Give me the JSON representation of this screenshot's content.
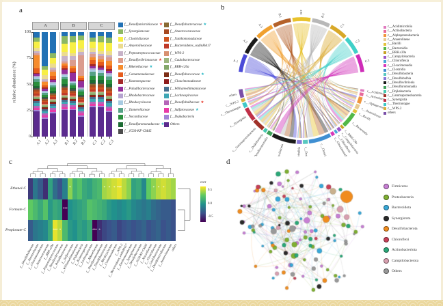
{
  "figure": {
    "panel_labels": {
      "a": "a",
      "b": "b",
      "c": "c",
      "d": "d"
    },
    "star_colors": {
      "red": "#e8392b",
      "cyan": "#29b8c5"
    }
  },
  "chart_data": [
    {
      "type": "bar",
      "panel": "a",
      "stacked": true,
      "ylabel": "relative abundance (%)",
      "ylim": [
        0,
        100
      ],
      "yticks": [
        "100",
        "75",
        "50",
        "25",
        "0"
      ],
      "facets": [
        "A",
        "B",
        "C"
      ],
      "categories": [
        "A.1",
        "A.2",
        "A.3",
        "B.1",
        "B.2",
        "B.3",
        "C.1",
        "C.2",
        "C.3"
      ],
      "series": [
        {
          "name": "f__Desulfomicrobiaceae",
          "color": "#2171b5",
          "star": "red",
          "values": [
            5,
            33,
            20,
            4,
            4,
            3,
            5,
            4,
            5
          ]
        },
        {
          "name": "f__Synergistaceae",
          "color": "#8cb863",
          "star": null,
          "values": [
            4,
            3,
            5,
            7,
            6,
            5,
            4,
            6,
            5
          ]
        },
        {
          "name": "f__Clostridiaceae",
          "color": "#f7ef45",
          "star": null,
          "values": [
            6,
            5,
            5,
            8,
            10,
            8,
            6,
            8,
            7
          ]
        },
        {
          "name": "f__Anaerolineaceae",
          "color": "#ecdc8f",
          "star": null,
          "values": [
            3,
            4,
            4,
            4,
            3,
            3,
            4,
            3,
            4
          ]
        },
        {
          "name": "f__Peptostreptococcaceae",
          "color": "#c7b2c8",
          "star": null,
          "values": [
            2,
            2,
            2,
            5,
            4,
            3,
            2,
            2,
            2
          ]
        },
        {
          "name": "f__Desulfovibrionaceae",
          "color": "#db9c8e",
          "star": "red",
          "values": [
            2,
            1,
            2,
            2,
            6,
            20,
            3,
            3,
            3
          ]
        },
        {
          "name": "f__Rikenellaceae",
          "color": "#f68b2c",
          "star": "cyan",
          "values": [
            13,
            3,
            4,
            2,
            2,
            2,
            3,
            3,
            4
          ]
        },
        {
          "name": "f__Comamonadaceae",
          "color": "#e65c1c",
          "star": null,
          "values": [
            4,
            2,
            3,
            3,
            3,
            2,
            4,
            3,
            3
          ]
        },
        {
          "name": "f__Kosmotogaceae",
          "color": "#a42828",
          "star": null,
          "values": [
            1,
            1,
            1,
            1,
            1,
            1,
            2,
            2,
            2
          ]
        },
        {
          "name": "f__Paludibacteraceae",
          "color": "#93309c",
          "star": null,
          "values": [
            2,
            2,
            2,
            4,
            8,
            6,
            2,
            2,
            2
          ]
        },
        {
          "name": "f__Rhodobacteraceae",
          "color": "#b6a4d0",
          "star": null,
          "values": [
            1,
            1,
            1,
            1,
            1,
            1,
            1,
            1,
            1
          ]
        },
        {
          "name": "f__Rhodocyclaceae",
          "color": "#a8cbe2",
          "star": null,
          "values": [
            2,
            1,
            2,
            2,
            1,
            1,
            2,
            2,
            2
          ]
        },
        {
          "name": "f__Tannerellaceae",
          "color": "#55a286",
          "star": null,
          "values": [
            3,
            2,
            2,
            2,
            2,
            2,
            4,
            3,
            3
          ]
        },
        {
          "name": "f__Nocardiaceae",
          "color": "#2a8f3c",
          "star": null,
          "values": [
            4,
            2,
            3,
            5,
            3,
            3,
            4,
            4,
            4
          ]
        },
        {
          "name": "f__Desulfuromonadaceae",
          "color": "#1c6b33",
          "star": "cyan",
          "values": [
            2,
            1,
            2,
            2,
            1,
            1,
            3,
            3,
            2
          ]
        },
        {
          "name": "f__JG30-KF-CM45",
          "color": "#4d4d4d",
          "star": null,
          "values": [
            1,
            1,
            1,
            1,
            1,
            1,
            1,
            1,
            1
          ]
        },
        {
          "name": "f__Desulfobacteraceae",
          "color": "#8a6a33",
          "star": "cyan",
          "values": [
            1,
            1,
            1,
            1,
            1,
            1,
            1,
            1,
            1
          ]
        },
        {
          "name": "f__Anaerovoracaceae",
          "color": "#a84a22",
          "star": null,
          "values": [
            1,
            1,
            1,
            2,
            1,
            1,
            2,
            2,
            2
          ]
        },
        {
          "name": "f__Xanthomonadaceae",
          "color": "#cf5522",
          "star": null,
          "values": [
            2,
            1,
            1,
            2,
            1,
            1,
            2,
            2,
            2
          ]
        },
        {
          "name": "f__Bacteroidetes_vadinHA17",
          "color": "#c03a28",
          "star": null,
          "values": [
            2,
            2,
            2,
            2,
            2,
            2,
            2,
            2,
            2
          ]
        },
        {
          "name": "f__WPS-2",
          "color": "#d89070",
          "star": null,
          "values": [
            1,
            1,
            1,
            1,
            1,
            1,
            1,
            1,
            1
          ]
        },
        {
          "name": "f__Caulobacteraceae",
          "color": "#9cb67e",
          "star": null,
          "values": [
            1,
            1,
            1,
            1,
            1,
            1,
            1,
            1,
            1
          ]
        },
        {
          "name": "f__BRH-c20a",
          "color": "#84a86a",
          "star": null,
          "values": [
            1,
            1,
            1,
            1,
            1,
            1,
            1,
            1,
            1
          ]
        },
        {
          "name": "f__Desulfobaccaceae",
          "color": "#7c2d16",
          "star": "cyan",
          "values": [
            1,
            1,
            1,
            1,
            1,
            1,
            1,
            1,
            1
          ]
        },
        {
          "name": "f__Cloacimonadaceae",
          "color": "#8f1d1d",
          "star": null,
          "values": [
            1,
            1,
            1,
            1,
            1,
            1,
            1,
            1,
            1
          ]
        },
        {
          "name": "f__Williamwhitmaniaceae",
          "color": "#47708f",
          "star": null,
          "values": [
            2,
            2,
            2,
            2,
            2,
            2,
            2,
            2,
            2
          ]
        },
        {
          "name": "f__Lachnospiraceae",
          "color": "#3fa7b5",
          "star": null,
          "values": [
            3,
            2,
            2,
            2,
            2,
            2,
            3,
            3,
            3
          ]
        },
        {
          "name": "f__Desulfobulbaceae",
          "color": "#b565b8",
          "star": "red",
          "values": [
            2,
            2,
            2,
            3,
            2,
            2,
            2,
            2,
            2
          ]
        },
        {
          "name": "f__Sulfurovaceae",
          "color": "#e93ba8",
          "star": "cyan",
          "values": [
            2,
            2,
            2,
            2,
            2,
            2,
            2,
            2,
            2
          ]
        },
        {
          "name": "f__Dojkabacteria",
          "color": "#a286d6",
          "star": null,
          "values": [
            1,
            1,
            1,
            1,
            1,
            1,
            1,
            1,
            1
          ]
        },
        {
          "name": "Others",
          "color": "#5b2b8e",
          "star": null,
          "values": [
            24,
            17,
            22,
            25,
            25,
            19,
            28,
            28,
            22
          ]
        }
      ]
    },
    {
      "type": "chord",
      "panel": "b",
      "samples": [
        {
          "name": "A.1",
          "color": "#4a4ad8"
        },
        {
          "name": "A.2",
          "color": "#1a1a1a"
        },
        {
          "name": "A.3",
          "color": "#f0a030"
        },
        {
          "name": "B.1",
          "color": "#b5622a"
        },
        {
          "name": "B.2",
          "color": "#e8c22c"
        },
        {
          "name": "B.3",
          "color": "#b8b8b8"
        },
        {
          "name": "C.1",
          "color": "#d8a828"
        },
        {
          "name": "C.2",
          "color": "#40d0c8"
        },
        {
          "name": "C.3",
          "color": "#cf2cb8"
        }
      ],
      "classes": [
        {
          "name": "c__Acidimicrobiia",
          "color": "#e07bbf",
          "value": 1.5
        },
        {
          "name": "c__Actinobacteria",
          "color": "#e86a9a",
          "value": 2
        },
        {
          "name": "c__Alphaproteobacteria",
          "color": "#f0953c",
          "value": 4
        },
        {
          "name": "c__Anaerolineae",
          "color": "#e8c98f",
          "value": 3
        },
        {
          "name": "c__Bacilli",
          "color": "#e3c23c",
          "value": 2
        },
        {
          "name": "c__Bacteroidia",
          "color": "#53b848",
          "value": 9
        },
        {
          "name": "c__BRH.c20a",
          "color": "#c8a227",
          "value": 1.5
        },
        {
          "name": "c__Campylobacteria",
          "color": "#9a55c8",
          "value": 2
        },
        {
          "name": "c__Chloroflexia",
          "color": "#4aa8d8",
          "value": 1.5
        },
        {
          "name": "c__Cloacimonadia",
          "color": "#d838b8",
          "value": 2
        },
        {
          "name": "c__Clostridia",
          "color": "#3f8fd2",
          "value": 13
        },
        {
          "name": "c__Desulfobacteria",
          "color": "#58c8c0",
          "value": 3
        },
        {
          "name": "c__Desulfobulbia",
          "color": "#8878d8",
          "value": 3
        },
        {
          "name": "c__Desulfovibrionia",
          "color": "#1a1a1a",
          "value": 14
        },
        {
          "name": "c__Desulfuromonadia",
          "color": "#3fa05a",
          "value": 3
        },
        {
          "name": "c__Dojkabacteria",
          "color": "#45c8b0",
          "value": 2
        },
        {
          "name": "c__Gammaproteobacteria",
          "color": "#a03028",
          "value": 7
        },
        {
          "name": "c__Synergistia",
          "color": "#c03048",
          "value": 8
        },
        {
          "name": "c__Thermotogae",
          "color": "#3fc8c8",
          "value": 3
        },
        {
          "name": "c__WPS.2",
          "color": "#d8b23c",
          "value": 2
        },
        {
          "name": "others",
          "color": "#7a4fa8",
          "value": 5
        }
      ]
    },
    {
      "type": "heatmap",
      "panel": "c",
      "rows": [
        "Ethanol-C",
        "Formate-C",
        "Propionate-C"
      ],
      "columns": [
        "f__Desulfobulbaceae",
        "f__Tannerellaceae",
        "f__Cloacimonadaceae",
        "f__Anaerovoracaceae",
        "f__BRH-c20a",
        "f__Peptostreptococcaceae",
        "f__Desulfovibrionaceae",
        "f__Paludibacteraceae",
        "f__Sulfurovaceae",
        "f__Williamwhitmaniaceae",
        "f__Dojkabacteria",
        "f__Kosmotogaceae",
        "f__Lachnospiraceae",
        "f__Rikenellaceae",
        "f__Desulfuromonadaceae",
        "f__Desulfobacteraceae",
        "f__Rhodocyclaceae",
        "f__Comamonadaceae",
        "f__WPS-2",
        "f__Bacteroidetes_vadinHA17",
        "f__Xanthomonadaceae",
        "f__Synergistaceae",
        "f__Desulfobaccaceae",
        "f__JG30-KF-CM45",
        "f__Nocardiaceae",
        "f__Clostridiaceae",
        "f__Caulobacteraceae",
        "f__Desulfomicrobiaceae",
        "f__Anaerolineaceae",
        "others"
      ],
      "values": [
        [
          -0.45,
          -0.15,
          -0.3,
          -0.5,
          0.1,
          -0.2,
          -0.35,
          -0.1,
          0.45,
          0.2,
          0.3,
          0.15,
          0.1,
          0.2,
          0.25,
          0.5,
          0.55,
          0.6,
          0.65,
          0.55,
          0.45,
          0.1,
          0.15,
          -0.05,
          0.35,
          0.45,
          0.55,
          0.6,
          0.55,
          0.5
        ],
        [
          0.35,
          0.25,
          0.15,
          0.3,
          0.05,
          0.15,
          0.1,
          -0.7,
          0.0,
          0.05,
          0.1,
          0.15,
          0.3,
          0.25,
          0.2,
          0.15,
          0.05,
          0.0,
          -0.05,
          0.0,
          0.05,
          -0.05,
          -0.1,
          -0.15,
          -0.1,
          -0.2,
          -0.25,
          -0.3,
          -0.3,
          -0.35
        ],
        [
          -0.3,
          -0.15,
          -0.1,
          -0.05,
          0.15,
          0.65,
          0.55,
          0.25,
          0.05,
          0.0,
          0.1,
          0.05,
          0.15,
          -0.7,
          -0.5,
          -0.4,
          -0.35,
          -0.3,
          -0.4,
          -0.35,
          -0.3,
          -0.35,
          -0.3,
          -0.25,
          -0.35,
          -0.3,
          -0.25,
          -0.35,
          -0.3,
          -0.35
        ]
      ],
      "stars": [
        {
          "row": 0,
          "col": 8,
          "text": "*"
        },
        {
          "row": 0,
          "col": 15,
          "text": "*"
        },
        {
          "row": 0,
          "col": 16,
          "text": "*"
        },
        {
          "row": 0,
          "col": 17,
          "text": "*"
        },
        {
          "row": 0,
          "col": 18,
          "text": "***"
        },
        {
          "row": 0,
          "col": 25,
          "text": "*"
        },
        {
          "row": 0,
          "col": 26,
          "text": "*"
        },
        {
          "row": 0,
          "col": 27,
          "text": "*"
        },
        {
          "row": 1,
          "col": 7,
          "text": "***"
        },
        {
          "row": 2,
          "col": 5,
          "text": "***"
        },
        {
          "row": 2,
          "col": 6,
          "text": "*"
        },
        {
          "row": 2,
          "col": 13,
          "text": "***"
        },
        {
          "row": 2,
          "col": 14,
          "text": "*"
        }
      ],
      "legend": {
        "title": "corr",
        "ticks": [
          "0.5",
          "0.0",
          "-0.5"
        ],
        "vmin": -0.7,
        "vmax": 0.7
      }
    },
    {
      "type": "network",
      "panel": "d",
      "legend_entries": [
        {
          "label": "Firmicutes",
          "color": "#c77fd4",
          "count": 26
        },
        {
          "label": "Proteobacteria",
          "color": "#7fb032",
          "count": 22
        },
        {
          "label": "Bacteroidota",
          "color": "#38a8d8",
          "count": 18
        },
        {
          "label": "Synergistota",
          "color": "#2a2a2a",
          "count": 10
        },
        {
          "label": "Desulfobacterota",
          "color": "#f08c1e",
          "count": 9
        },
        {
          "label": "Chloroflexi",
          "color": "#c84058",
          "count": 6
        },
        {
          "label": "Actinobacteriota",
          "color": "#2aa878",
          "count": 12
        },
        {
          "label": "Campilobacterota",
          "color": "#d8a0b0",
          "count": 6
        },
        {
          "label": "Others",
          "color": "#999999",
          "count": 14
        }
      ]
    }
  ]
}
